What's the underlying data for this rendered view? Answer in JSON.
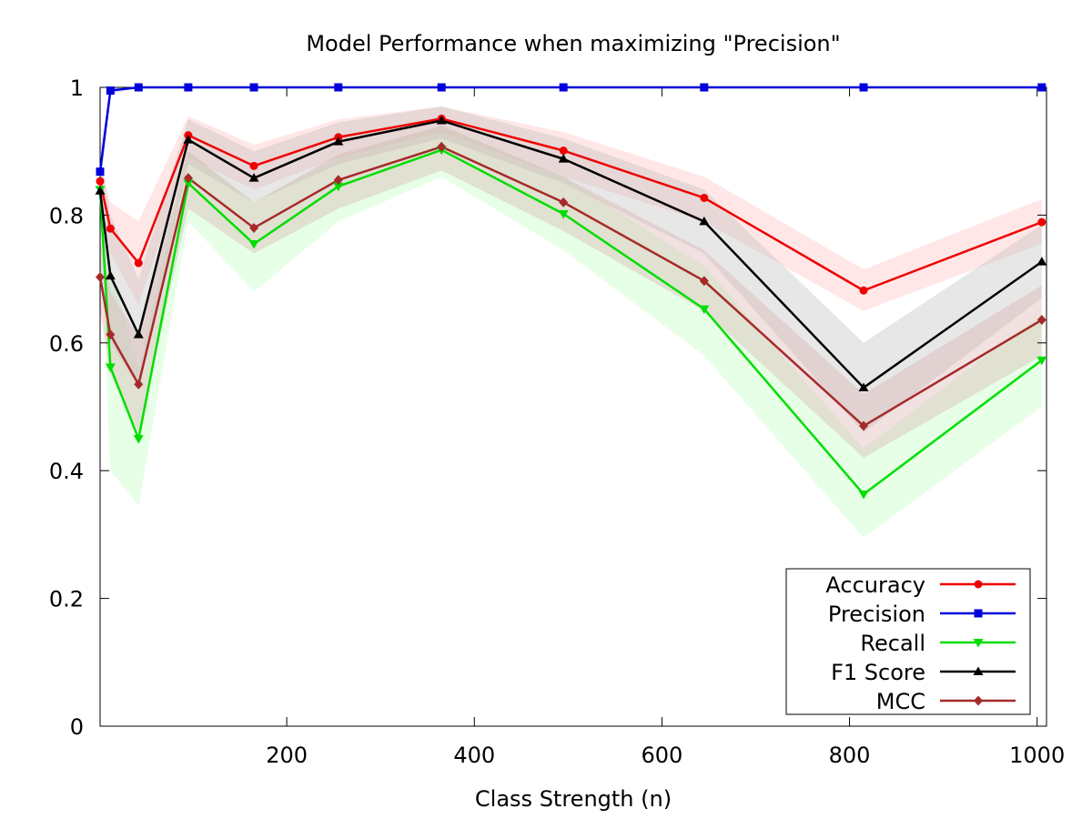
{
  "chart_data": {
    "type": "line",
    "title": "Model Performance when maximizing \"Precision\"",
    "xlabel": "Class Strength (n)",
    "ylabel": "",
    "xlim": [
      1,
      1010
    ],
    "ylim": [
      0,
      1
    ],
    "x_ticks": [
      200,
      400,
      600,
      800,
      1000
    ],
    "x_tick_labels": [
      "200",
      "400",
      "600",
      "800",
      "1000"
    ],
    "y_ticks": [
      0,
      0.2,
      0.4,
      0.6,
      0.8,
      1
    ],
    "y_tick_labels": [
      "0",
      "0.2",
      "0.4",
      "0.6",
      "0.8",
      "1"
    ],
    "grid": false,
    "legend_position": "bottom-right",
    "x": [
      1,
      12,
      42,
      95,
      165,
      255,
      365,
      495,
      645,
      815,
      1005
    ],
    "series": [
      {
        "name": "Accuracy",
        "color": "#ee0000",
        "marker": "circle",
        "band_color": "#ffbbbb",
        "values": [
          0.853,
          0.779,
          0.725,
          0.925,
          0.877,
          0.922,
          0.951,
          0.901,
          0.827,
          0.682,
          0.789
        ],
        "lower": [
          0.82,
          0.74,
          0.66,
          0.89,
          0.84,
          0.89,
          0.93,
          0.86,
          0.79,
          0.65,
          0.755
        ],
        "upper": [
          0.885,
          0.82,
          0.79,
          0.955,
          0.91,
          0.95,
          0.97,
          0.93,
          0.86,
          0.715,
          0.825
        ]
      },
      {
        "name": "Precision",
        "color": "#0000dd",
        "marker": "square",
        "band_color": "#aaaaff",
        "values": [
          0.868,
          0.995,
          1.0,
          1.0,
          1.0,
          1.0,
          1.0,
          1.0,
          1.0,
          1.0,
          1.0
        ],
        "lower": [
          0.84,
          0.99,
          1.0,
          1.0,
          1.0,
          1.0,
          1.0,
          1.0,
          1.0,
          1.0,
          1.0
        ],
        "upper": [
          0.9,
          1.0,
          1.0,
          1.0,
          1.0,
          1.0,
          1.0,
          1.0,
          1.0,
          1.0,
          1.0
        ]
      },
      {
        "name": "Recall",
        "color": "#00dd00",
        "marker": "triangle-down",
        "band_color": "#bbffbb",
        "values": [
          0.84,
          0.562,
          0.45,
          0.85,
          0.755,
          0.845,
          0.902,
          0.802,
          0.653,
          0.363,
          0.573
        ],
        "lower": [
          0.78,
          0.4,
          0.345,
          0.79,
          0.68,
          0.79,
          0.86,
          0.745,
          0.58,
          0.295,
          0.5
        ],
        "upper": [
          0.895,
          0.72,
          0.56,
          0.9,
          0.82,
          0.89,
          0.94,
          0.86,
          0.72,
          0.435,
          0.645
        ]
      },
      {
        "name": "F1 Score",
        "color": "#000000",
        "marker": "triangle-up",
        "band_color": "#bbbbbb",
        "values": [
          0.838,
          0.705,
          0.613,
          0.918,
          0.858,
          0.915,
          0.948,
          0.888,
          0.79,
          0.53,
          0.727
        ],
        "lower": [
          0.79,
          0.6,
          0.53,
          0.88,
          0.82,
          0.88,
          0.92,
          0.85,
          0.74,
          0.46,
          0.67
        ],
        "upper": [
          0.885,
          0.8,
          0.7,
          0.95,
          0.9,
          0.945,
          0.97,
          0.92,
          0.84,
          0.6,
          0.785
        ]
      },
      {
        "name": "MCC",
        "color": "#a52a2a",
        "marker": "diamond",
        "band_color": "#d8a8a8",
        "values": [
          0.703,
          0.613,
          0.535,
          0.858,
          0.78,
          0.855,
          0.907,
          0.82,
          0.697,
          0.47,
          0.636
        ],
        "lower": [
          0.65,
          0.55,
          0.46,
          0.81,
          0.74,
          0.81,
          0.87,
          0.775,
          0.65,
          0.42,
          0.58
        ],
        "upper": [
          0.76,
          0.68,
          0.61,
          0.9,
          0.82,
          0.895,
          0.94,
          0.86,
          0.745,
          0.52,
          0.69
        ]
      }
    ]
  }
}
